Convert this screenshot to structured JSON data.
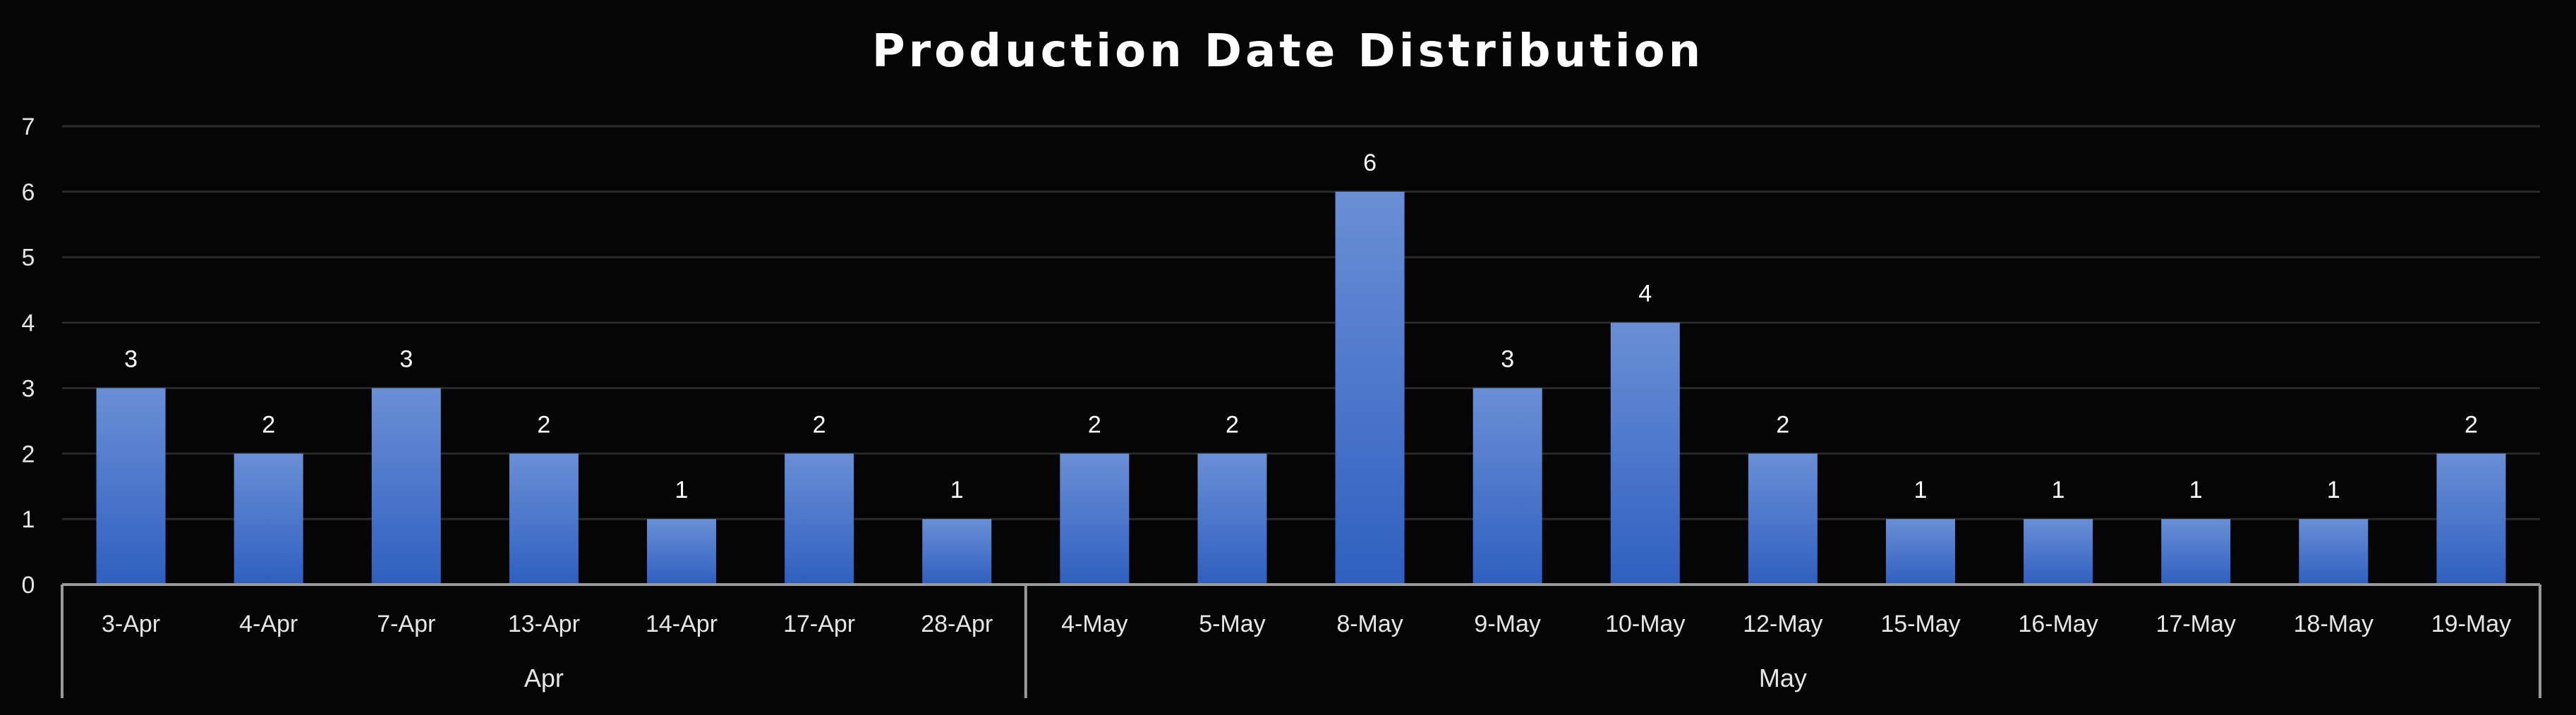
{
  "chart_data": {
    "type": "bar",
    "title": "Production Date Distribution",
    "categories": [
      "3-Apr",
      "4-Apr",
      "7-Apr",
      "13-Apr",
      "14-Apr",
      "17-Apr",
      "28-Apr",
      "4-May",
      "5-May",
      "8-May",
      "9-May",
      "10-May",
      "12-May",
      "15-May",
      "16-May",
      "17-May",
      "18-May",
      "19-May"
    ],
    "values": [
      3,
      2,
      3,
      2,
      1,
      2,
      1,
      2,
      2,
      6,
      3,
      4,
      2,
      1,
      1,
      1,
      1,
      2
    ],
    "groups": [
      {
        "label": "Apr",
        "count": 7
      },
      {
        "label": "May",
        "count": 11
      }
    ],
    "ylim": [
      0,
      7
    ],
    "yticks": [
      0,
      1,
      2,
      3,
      4,
      5,
      6,
      7
    ],
    "grid": true,
    "legend": "none",
    "colors": {
      "bar_top": "#6a8fd6",
      "bar_bottom": "#2f5fc0",
      "background": "#050505",
      "grid": "#2a2a2a",
      "axis": "#9a9a9a",
      "text": "#e6e6e6"
    }
  }
}
